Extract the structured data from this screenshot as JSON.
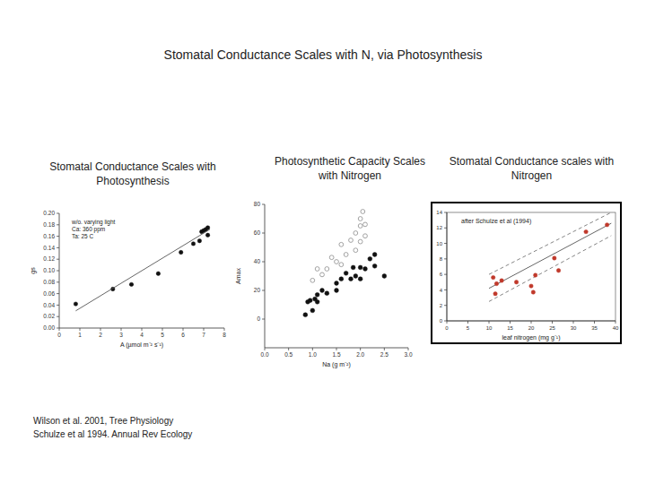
{
  "title": "Stomatal Conductance Scales with N, via Photosynthesis",
  "citations": [
    "Wilson et al. 2001, Tree Physiology",
    "Schulze et al 1994. Annual Rev Ecology"
  ],
  "chart_data": [
    {
      "type": "scatter",
      "title": "Stomatal Conductance Scales with Photosynthesis",
      "x_label": "A (µmol m⁻² s⁻¹)",
      "y_label": "gs",
      "annotations": [
        "w/o. varying light",
        "Ca: 360 ppm",
        "Ta: 25 C"
      ],
      "xlim": [
        0,
        8
      ],
      "xticks": [
        0,
        1,
        2,
        3,
        4,
        5,
        6,
        7,
        8
      ],
      "ylim": [
        0,
        0.2
      ],
      "yticks": [
        {
          "value": 0,
          "label": "0.00"
        },
        {
          "value": 0.02,
          "label": "0.02"
        },
        {
          "value": 0.04,
          "label": "0.04"
        },
        {
          "value": 0.06,
          "label": "0.06"
        },
        {
          "value": 0.08,
          "label": "0.08"
        },
        {
          "value": 0.1,
          "label": "0.10"
        },
        {
          "value": 0.12,
          "label": "0.12"
        },
        {
          "value": 0.14,
          "label": "0.14"
        },
        {
          "value": 0.16,
          "label": "0.16"
        },
        {
          "value": 0.18,
          "label": "0.18"
        },
        {
          "value": 0.2,
          "label": "0.20"
        }
      ],
      "grid": false,
      "series": [
        {
          "type": "scatter",
          "marker": "circle",
          "color": "#111111",
          "x": [
            0.8,
            2.6,
            3.5,
            4.8,
            5.9,
            6.5,
            6.8,
            6.9,
            7.0,
            7.1,
            7.2,
            7.2
          ],
          "values": [
            0.042,
            0.068,
            0.076,
            0.095,
            0.132,
            0.147,
            0.152,
            0.168,
            0.17,
            0.172,
            0.175,
            0.162
          ]
        },
        {
          "type": "line",
          "line_style": "solid",
          "color": "#555555",
          "x": [
            0.8,
            7.3
          ],
          "values": [
            0.03,
            0.172
          ]
        }
      ]
    },
    {
      "type": "scatter",
      "title": "Photosynthetic Capacity Scales with Nitrogen",
      "x_label": "Na (g m⁻²)",
      "y_label": "Amax",
      "xlim": [
        0,
        3
      ],
      "xticks": [
        {
          "value": 0,
          "label": "0.0"
        },
        {
          "value": 0.5,
          "label": "0.5"
        },
        {
          "value": 1,
          "label": "1.0"
        },
        {
          "value": 1.5,
          "label": "1.5"
        },
        {
          "value": 2,
          "label": "2.0"
        },
        {
          "value": 2.5,
          "label": "2.5"
        },
        {
          "value": 3,
          "label": "3.0"
        }
      ],
      "ylim": [
        -20,
        80
      ],
      "yticks": [
        0,
        20,
        40,
        60,
        80
      ],
      "grid": false,
      "series": [
        {
          "type": "scatter",
          "marker": "open-circle",
          "color": "#999999",
          "x": [
            1.0,
            1.1,
            1.2,
            1.3,
            1.4,
            1.5,
            1.6,
            1.6,
            1.7,
            1.8,
            1.9,
            1.9,
            2.0,
            2.0,
            2.0,
            2.05,
            2.1,
            2.1
          ],
          "values": [
            27,
            35,
            31,
            35,
            43,
            40,
            52,
            38,
            45,
            55,
            60,
            48,
            54,
            65,
            70,
            75,
            58,
            66
          ]
        },
        {
          "type": "scatter",
          "marker": "circle",
          "color": "#111111",
          "x": [
            0.85,
            0.9,
            0.95,
            1.0,
            1.05,
            1.1,
            1.1,
            1.2,
            1.3,
            1.5,
            1.5,
            1.6,
            1.7,
            1.8,
            1.85,
            1.9,
            2.0,
            2.0,
            2.1,
            2.2,
            2.3,
            2.3,
            2.5
          ],
          "values": [
            3,
            12,
            13,
            6,
            14,
            17,
            12,
            20,
            18,
            25,
            20,
            28,
            32,
            28,
            36,
            30,
            36,
            28,
            35,
            42,
            45,
            37,
            30
          ]
        }
      ]
    },
    {
      "type": "scatter",
      "title": "Stomatal Conductance scales with Nitrogen",
      "x_label": "leaf nitrogen (mg g⁻¹)",
      "annotations": [
        "after Schulze et al (1994)"
      ],
      "xlim": [
        0,
        40
      ],
      "xticks": [
        0,
        5,
        10,
        15,
        20,
        25,
        30,
        35,
        40
      ],
      "ylim": [
        0,
        14
      ],
      "yticks": [
        0,
        2,
        4,
        6,
        8,
        10,
        12,
        14
      ],
      "grid": false,
      "series": [
        {
          "type": "line",
          "line_style": "dashed",
          "color": "#777777",
          "x": [
            10,
            39
          ],
          "values": [
            6.0,
            14.0
          ]
        },
        {
          "type": "line",
          "line_style": "solid",
          "color": "#555555",
          "x": [
            10,
            39
          ],
          "values": [
            4.2,
            12.6
          ]
        },
        {
          "type": "line",
          "line_style": "dashed",
          "color": "#777777",
          "x": [
            10,
            39
          ],
          "values": [
            2.5,
            11.0
          ]
        },
        {
          "type": "scatter",
          "marker": "circle",
          "color": "#c0392b",
          "x": [
            11,
            11.5,
            11.8,
            13,
            16.5,
            20,
            20.5,
            21,
            25.5,
            26.5,
            33,
            38
          ],
          "values": [
            5.6,
            3.5,
            4.8,
            5.2,
            5.0,
            4.5,
            3.7,
            5.9,
            8.1,
            6.5,
            11.5,
            12.4
          ]
        }
      ]
    }
  ]
}
